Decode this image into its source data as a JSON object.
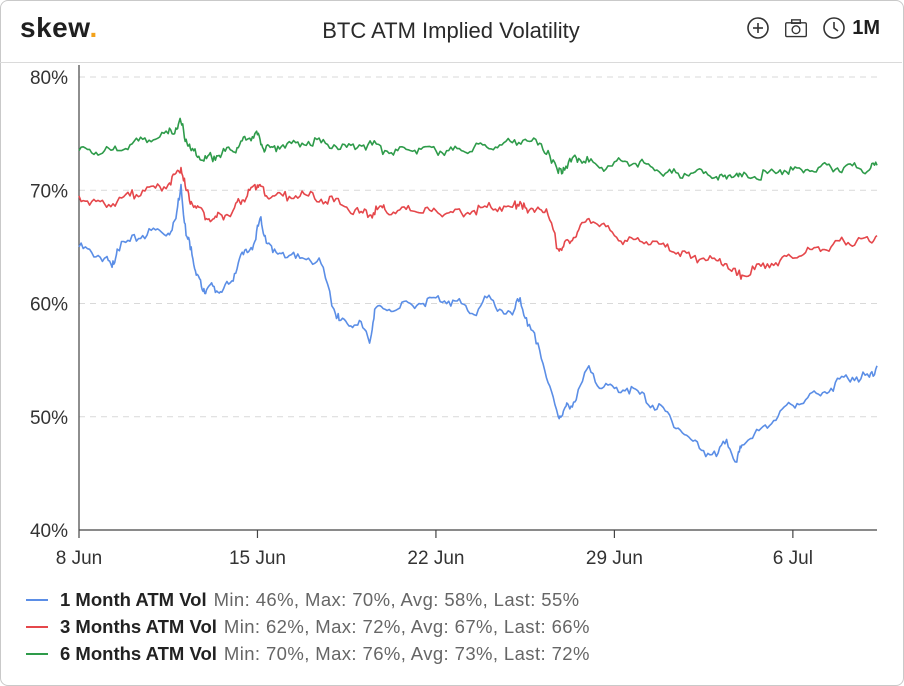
{
  "header": {
    "logo_text": "skew",
    "logo_dot": ".",
    "title": "BTC ATM Implied Volatility",
    "range_label": "1M",
    "icons": [
      "zoom-in-icon",
      "camera-icon",
      "clock-icon"
    ]
  },
  "colors": {
    "one_month": "#5b8ee6",
    "three_months": "#e5474b",
    "six_months": "#2e9b4a",
    "logo_dot": "#f3a21a"
  },
  "chart_data": {
    "type": "line",
    "title": "BTC ATM Implied Volatility",
    "xlabel": "",
    "ylabel": "",
    "x_ticks": [
      "8 Jun",
      "15 Jun",
      "22 Jun",
      "29 Jun",
      "6 Jul"
    ],
    "x_tick_days": [
      0,
      7,
      14,
      21,
      28
    ],
    "x_range_days": [
      0,
      31.3
    ],
    "y_ticks": [
      "40%",
      "50%",
      "60%",
      "70%",
      "80%"
    ],
    "ylim": [
      40,
      80
    ],
    "grid": true,
    "legend_position": "bottom-left",
    "series": [
      {
        "name": "1 Month ATM Vol",
        "stats": "Min: 46%, Max: 70%, Avg: 58%, Last: 55%",
        "x_days": [
          0,
          0.5,
          1,
          1.3,
          1.5,
          2,
          2.5,
          3,
          3.5,
          3.8,
          4,
          4.2,
          4.4,
          4.6,
          4.8,
          5.0,
          5.3,
          5.6,
          6,
          6.3,
          6.6,
          6.9,
          7.1,
          7.3,
          7.6,
          8,
          8.5,
          9,
          9.5,
          10,
          10.2,
          10.6,
          11,
          11.4,
          11.6,
          12,
          12.5,
          13,
          13.5,
          14,
          14.5,
          15,
          15.5,
          16,
          16.5,
          17,
          17.3,
          17.6,
          18,
          18.4,
          18.8,
          19,
          19.2,
          19.5,
          20,
          20.5,
          21,
          21.5,
          22,
          22.5,
          23,
          23.5,
          24,
          24.5,
          25,
          25.4,
          25.8,
          26,
          26.5,
          27,
          27.5,
          28,
          28.5,
          29,
          29.5,
          30,
          30.5,
          31,
          31.3
        ],
        "values": [
          65,
          64.5,
          64,
          63.2,
          64.8,
          65.5,
          66,
          66.5,
          66.2,
          67.5,
          70.5,
          66,
          65,
          62.5,
          61.5,
          61.2,
          61.5,
          61,
          62,
          64,
          64.5,
          65.5,
          67.5,
          66,
          64.5,
          64.5,
          64,
          64,
          63.5,
          59.5,
          58.5,
          58,
          58.5,
          56.5,
          59.5,
          59.5,
          59.5,
          60,
          60,
          60.5,
          60.2,
          60,
          59,
          60.5,
          59.5,
          59,
          60.5,
          58,
          56.5,
          53,
          50,
          50.5,
          51,
          51.5,
          54.5,
          52.5,
          52.5,
          52.5,
          52,
          51,
          50.5,
          49,
          48,
          47,
          46.5,
          48,
          46,
          47.5,
          48.5,
          49,
          50.5,
          51,
          51.5,
          52,
          52.5,
          53.5,
          53.5,
          53.5,
          54.5
        ]
      },
      {
        "name": "3 Months ATM Vol",
        "stats": "Min: 62%, Max: 72%, Avg: 67%, Last: 66%",
        "x_days": [
          0,
          0.5,
          1,
          1.5,
          2,
          2.5,
          3,
          3.5,
          3.8,
          4,
          4.2,
          4.4,
          4.7,
          5.0,
          5.3,
          5.6,
          6,
          6.3,
          6.6,
          6.9,
          7.1,
          7.3,
          7.6,
          8,
          8.5,
          9,
          9.5,
          10,
          10.5,
          11,
          11.4,
          11.7,
          12,
          12.5,
          13,
          13.5,
          14,
          14.5,
          15,
          15.5,
          16,
          16.5,
          17,
          17.3,
          17.6,
          18,
          18.4,
          18.8,
          19,
          19.3,
          19.6,
          20,
          20.5,
          21,
          21.5,
          22,
          22.5,
          23,
          23.5,
          24,
          24.5,
          25,
          25.4,
          25.8,
          26,
          26.5,
          27,
          27.5,
          28,
          28.5,
          29,
          29.5,
          30,
          30.5,
          31,
          31.3
        ],
        "values": [
          69.5,
          69,
          68.8,
          69,
          69.5,
          70,
          70.2,
          70.5,
          71.5,
          72,
          70,
          69,
          68.5,
          67.5,
          67.5,
          67.8,
          68,
          69,
          69.5,
          70.5,
          70.5,
          69.5,
          69.5,
          69.5,
          69.5,
          69.5,
          69.2,
          69,
          68.5,
          68,
          67.8,
          68.3,
          68.3,
          68.2,
          68.2,
          68,
          68.2,
          68,
          68,
          68.2,
          68.5,
          68.5,
          68.5,
          69,
          68,
          68.5,
          67.8,
          64.8,
          65,
          65.5,
          66.5,
          67.5,
          67,
          66,
          65.5,
          65.5,
          65.5,
          65,
          64.5,
          64,
          64,
          63.8,
          63.5,
          62.5,
          62.5,
          63,
          63.5,
          63.8,
          64,
          64.5,
          65,
          65,
          65.5,
          65.5,
          65.5,
          66
        ]
      },
      {
        "name": "6 Months ATM Vol",
        "stats": "Min: 70%, Max: 76%, Avg: 73%, Last: 72%",
        "x_days": [
          0,
          0.5,
          1,
          1.5,
          2,
          2.5,
          3,
          3.5,
          3.8,
          4,
          4.2,
          4.4,
          4.7,
          5.0,
          5.3,
          5.6,
          6,
          6.3,
          6.6,
          6.9,
          7.1,
          7.3,
          7.6,
          8,
          8.5,
          9,
          9.5,
          10,
          10.5,
          11,
          11.5,
          12,
          12.5,
          13,
          13.5,
          14,
          14.5,
          15,
          15.5,
          16,
          16.5,
          17,
          17.5,
          18,
          18.4,
          18.8,
          19,
          19.3,
          19.6,
          20,
          20.5,
          21,
          21.5,
          22,
          22.5,
          23,
          23.5,
          24,
          24.5,
          25,
          25.4,
          25.8,
          26,
          26.5,
          27,
          27.5,
          28,
          28.5,
          29,
          29.5,
          30,
          30.5,
          31,
          31.3
        ],
        "values": [
          73.5,
          73.3,
          73.5,
          73.5,
          74,
          74.5,
          74.5,
          75,
          75.5,
          76,
          74.5,
          73.5,
          73,
          72.8,
          73,
          73.2,
          73.5,
          74,
          74.5,
          75,
          74.5,
          73.5,
          73.8,
          74,
          74.2,
          74.3,
          74.2,
          74,
          73.8,
          74,
          74,
          73.5,
          73.5,
          73.5,
          73.8,
          73.5,
          73.5,
          73.5,
          73.8,
          73.8,
          74,
          74.2,
          74.5,
          74,
          73.5,
          71.5,
          72,
          72.5,
          72.8,
          72.5,
          72,
          72.5,
          72.5,
          72.5,
          72,
          71.5,
          71.5,
          71.5,
          71.5,
          71.2,
          71,
          71.5,
          71.2,
          71.2,
          71.5,
          71.8,
          71.8,
          71.8,
          72,
          72,
          72,
          72,
          71.8,
          72.2
        ]
      }
    ]
  }
}
